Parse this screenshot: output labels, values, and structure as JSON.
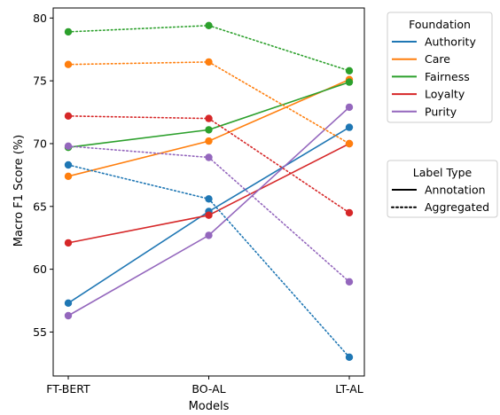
{
  "chart_data": {
    "type": "line",
    "title": "",
    "xlabel": "Models",
    "ylabel": "Macro F1 Score (%)",
    "categories": [
      "FT-BERT",
      "BO-AL",
      "LT-AL"
    ],
    "ylim": [
      51.5,
      80.8
    ],
    "yticks": [
      55,
      60,
      65,
      70,
      75,
      80
    ],
    "grid": false,
    "series": [
      {
        "name": "Authority",
        "color": "#1f77b4",
        "label_type": "Annotation",
        "values": [
          57.3,
          64.6,
          71.3
        ]
      },
      {
        "name": "Care",
        "color": "#ff7f0e",
        "label_type": "Annotation",
        "values": [
          67.4,
          70.2,
          75.1
        ]
      },
      {
        "name": "Fairness",
        "color": "#2ca02c",
        "label_type": "Annotation",
        "values": [
          69.7,
          71.1,
          74.9
        ]
      },
      {
        "name": "Loyalty",
        "color": "#d62728",
        "label_type": "Annotation",
        "values": [
          62.1,
          64.3,
          70.0
        ]
      },
      {
        "name": "Purity",
        "color": "#9467bd",
        "label_type": "Annotation",
        "values": [
          56.3,
          62.7,
          72.9
        ]
      },
      {
        "name": "Authority",
        "color": "#1f77b4",
        "label_type": "Aggregated",
        "values": [
          68.3,
          65.6,
          53.0
        ]
      },
      {
        "name": "Care",
        "color": "#ff7f0e",
        "label_type": "Aggregated",
        "values": [
          76.3,
          76.5,
          70.0
        ]
      },
      {
        "name": "Fairness",
        "color": "#2ca02c",
        "label_type": "Aggregated",
        "values": [
          78.9,
          79.4,
          75.8
        ]
      },
      {
        "name": "Loyalty",
        "color": "#d62728",
        "label_type": "Aggregated",
        "values": [
          72.2,
          72.0,
          64.5
        ]
      },
      {
        "name": "Purity",
        "color": "#9467bd",
        "label_type": "Aggregated",
        "values": [
          69.8,
          68.9,
          59.0
        ]
      }
    ],
    "legends": [
      {
        "title": "Foundation",
        "placement": "outside-right-top",
        "entries": [
          {
            "label": "Authority",
            "color": "#1f77b4",
            "style": "solid"
          },
          {
            "label": "Care",
            "color": "#ff7f0e",
            "style": "solid"
          },
          {
            "label": "Fairness",
            "color": "#2ca02c",
            "style": "solid"
          },
          {
            "label": "Loyalty",
            "color": "#d62728",
            "style": "solid"
          },
          {
            "label": "Purity",
            "color": "#9467bd",
            "style": "solid"
          }
        ]
      },
      {
        "title": "Label Type",
        "placement": "outside-right-middle",
        "entries": [
          {
            "label": "Annotation",
            "color": "#000000",
            "style": "solid"
          },
          {
            "label": "Aggregated",
            "color": "#000000",
            "style": "dotted"
          }
        ]
      }
    ]
  }
}
